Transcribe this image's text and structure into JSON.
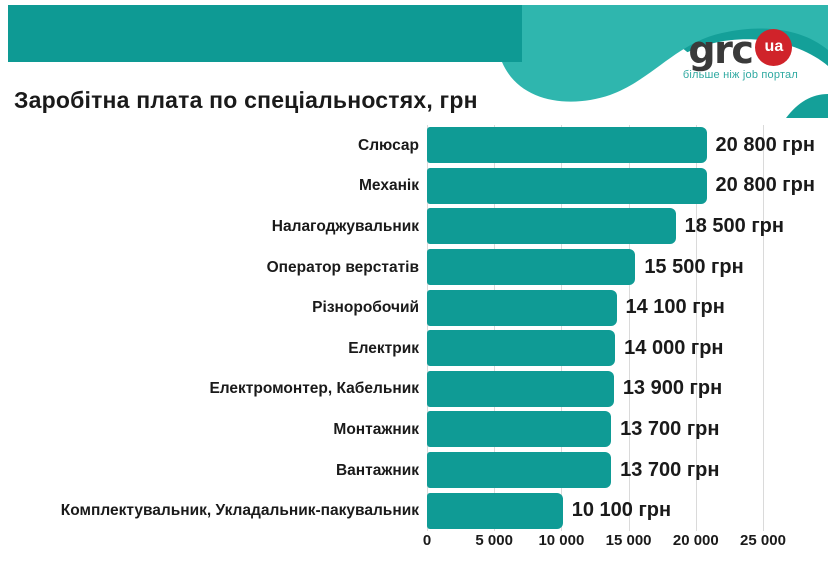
{
  "logo": {
    "text": "grc",
    "badge": "ua",
    "tagline": "більше ніж job портал"
  },
  "colors": {
    "band_teal": "#0E9A94",
    "wave_light_teal": "#2FB6AE",
    "wave_medium_teal": "#14A099",
    "bar_teal": "#0F9B95",
    "logo_red": "#D0232A",
    "logo_dark": "#3A3A3A",
    "tagline_teal": "#2FA9A1",
    "text_dark": "#1A1A1A",
    "gridline": "#DADADA",
    "background": "#FFFFFF"
  },
  "chart_data": {
    "type": "bar",
    "orientation": "horizontal",
    "title": "Заробітна плата по спеціальностях, грн",
    "unit": "грн",
    "categories": [
      "Слюсар",
      "Механік",
      "Налагоджувальник",
      "Оператор верстатів",
      "Різноробочий",
      "Електрик",
      "Електромонтер, Кабельник",
      "Монтажник",
      "Вантажник",
      "Комплектувальник, Укладальник-пакувальник"
    ],
    "values": [
      20800,
      20800,
      18500,
      15500,
      14100,
      14000,
      13900,
      13700,
      13700,
      10100
    ],
    "value_labels": [
      "20 800 грн",
      "20 800 грн",
      "18 500 грн",
      "15 500 грн",
      "14 100 грн",
      "14 000 грн",
      "13 900 грн",
      "13 700 грн",
      "13 700 грн",
      "10 100 грн"
    ],
    "x_ticks": [
      0,
      5000,
      10000,
      15000,
      20000,
      25000
    ],
    "x_tick_labels": [
      "0",
      "5 000",
      "10 000",
      "15 000",
      "20 000",
      "25 000"
    ],
    "xlim": [
      0,
      25000
    ],
    "grid": true,
    "legend": false
  }
}
